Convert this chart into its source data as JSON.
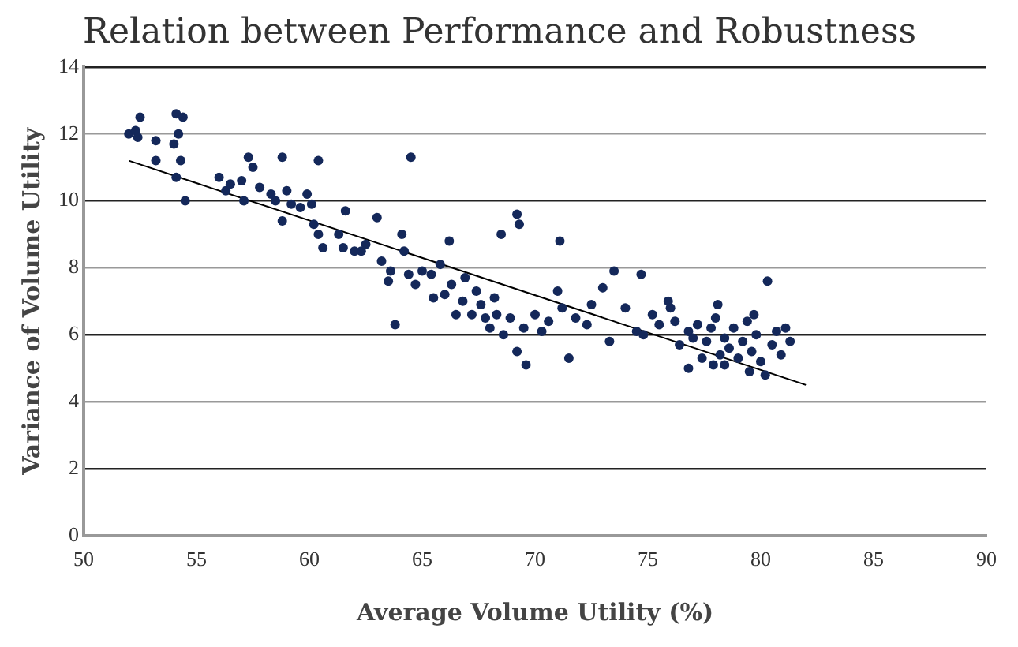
{
  "chart_data": {
    "type": "scatter",
    "title": "Relation between Performance and Robustness",
    "xlabel": "Average Volume Utility (%)",
    "ylabel": "Variance of Volume Utility",
    "xlim": [
      50,
      90
    ],
    "xticks": [
      50,
      55,
      60,
      65,
      70,
      75,
      80,
      85,
      90
    ],
    "ylim": [
      0,
      14
    ],
    "yticks": [
      0,
      2,
      4,
      6,
      8,
      10,
      12,
      14
    ],
    "grid": "y",
    "legend": false,
    "marker": "circle",
    "series": [
      {
        "color": "#14285a",
        "x": [
          52,
          52.3,
          52.5,
          52.4,
          53.2,
          53.2,
          54,
          54.1,
          54.4,
          54.3,
          54.1,
          54.5,
          54.2,
          56,
          56.3,
          56.5,
          57,
          57.3,
          57.5,
          57.8,
          57.1,
          58.3,
          58.5,
          58.8,
          59,
          59.2,
          59.6,
          59.9,
          60.1,
          60.4,
          58.8,
          60.2,
          60.4,
          60.6,
          61.3,
          61.6,
          61.5,
          62.3,
          62.5,
          63,
          63.2,
          63.5,
          64.1,
          64.4,
          64.5,
          63.8,
          64.7,
          64.2,
          65,
          65.4,
          65.8,
          66,
          66.2,
          66.3,
          66.5,
          66.8,
          67.2,
          67.4,
          67.6,
          67.8,
          68,
          68.2,
          68.3,
          68.6,
          68.9,
          69.2,
          69.3,
          69.5,
          69.2,
          69.6,
          70,
          70.3,
          70.6,
          71,
          71.1,
          71.2,
          71.5,
          71.8,
          72.3,
          73,
          73.3,
          73.5,
          74,
          74.5,
          74.8,
          75.2,
          75.5,
          76,
          76.2,
          76.4,
          76.8,
          77,
          77.2,
          77.4,
          77.6,
          77.8,
          78,
          78.2,
          78.4,
          78.6,
          78.8,
          79,
          79.2,
          79.4,
          79.6,
          79.8,
          80,
          80.2,
          80.3,
          80.5,
          80.7,
          80.9,
          81.1,
          81.3,
          76.8,
          77.9,
          75.9,
          74.7,
          78.1,
          79.5,
          65.5,
          62,
          63.6,
          66.9,
          68.5,
          72.5,
          79.7,
          78.4
        ],
        "values": [
          12,
          12.1,
          12.5,
          11.9,
          11.8,
          11.2,
          11.7,
          12.6,
          12.5,
          11.2,
          10.7,
          10,
          12,
          10.7,
          10.3,
          10.5,
          10.6,
          11.3,
          11,
          10.4,
          10,
          10.2,
          10,
          11.3,
          10.3,
          9.9,
          9.8,
          10.2,
          9.9,
          11.2,
          9.4,
          9.3,
          9,
          8.6,
          9,
          9.7,
          8.6,
          8.5,
          8.7,
          9.5,
          8.2,
          7.6,
          9,
          7.8,
          11.3,
          6.3,
          7.5,
          8.5,
          7.9,
          7.8,
          8.1,
          7.2,
          8.8,
          7.5,
          6.6,
          7,
          6.6,
          7.3,
          6.9,
          6.5,
          6.2,
          7.1,
          6.6,
          6,
          6.5,
          9.6,
          9.3,
          6.2,
          5.5,
          5.1,
          6.6,
          6.1,
          6.4,
          7.3,
          8.8,
          6.8,
          5.3,
          6.5,
          6.3,
          7.4,
          5.8,
          7.9,
          6.8,
          6.1,
          6,
          6.6,
          6.3,
          6.8,
          6.4,
          5.7,
          6.1,
          5.9,
          6.3,
          5.3,
          5.8,
          6.2,
          6.5,
          5.4,
          5.9,
          5.6,
          6.2,
          5.3,
          5.8,
          6.4,
          5.5,
          6,
          5.2,
          4.8,
          7.6,
          5.7,
          6.1,
          5.4,
          6.2,
          5.8,
          5,
          5.1,
          7,
          7.8,
          6.9,
          4.9,
          7.1,
          8.5,
          7.9,
          7.7,
          9,
          6.9,
          6.6,
          5.1
        ]
      },
      {
        "type": "line",
        "color": "#000000",
        "marker": "none",
        "x": [
          52,
          82
        ],
        "values": [
          11.2,
          4.5
        ]
      }
    ]
  }
}
